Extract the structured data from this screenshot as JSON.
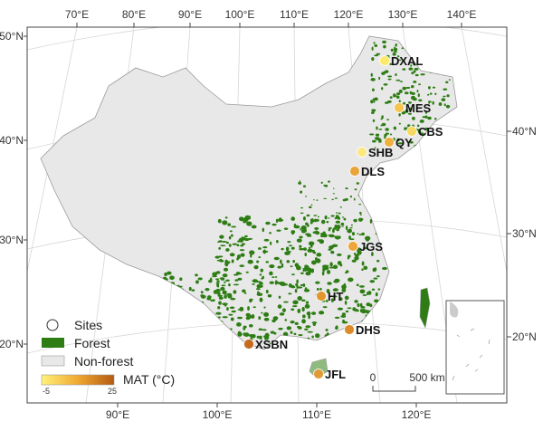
{
  "axes": {
    "top": [
      "70°E",
      "80°E",
      "90°E",
      "100°E",
      "110°E",
      "120°E",
      "130°E",
      "140°E"
    ],
    "bottom": [
      "90°E",
      "100°E",
      "110°E",
      "120°E"
    ],
    "left": [
      "50°N",
      "40°N",
      "30°N",
      "20°N"
    ],
    "right": [
      "40°N",
      "30°N",
      "20°N"
    ]
  },
  "sites": [
    {
      "name": "DXAL",
      "color": "#fde96a"
    },
    {
      "name": "MES",
      "color": "#f5c550"
    },
    {
      "name": "CBS",
      "color": "#f8d860"
    },
    {
      "name": "QY",
      "color": "#f0b040"
    },
    {
      "name": "SHB",
      "color": "#fce880"
    },
    {
      "name": "DLS",
      "color": "#e9a43a"
    },
    {
      "name": "JGS",
      "color": "#eea53a"
    },
    {
      "name": "HT",
      "color": "#e3962e"
    },
    {
      "name": "DHS",
      "color": "#dc8a2a"
    },
    {
      "name": "XSBN",
      "color": "#c56a1e"
    },
    {
      "name": "JFL",
      "color": "#e09a38"
    }
  ],
  "legend": {
    "sites": "Sites",
    "forest": "Forest",
    "nonforest": "Non-forest",
    "mat_title": "MAT (°C)",
    "mat_min": "-5",
    "mat_max": "25",
    "forest_color": "#2e7d14",
    "nonforest_color": "#e8e8e8"
  },
  "scalebar": {
    "zero": "0",
    "label": "500 km"
  }
}
